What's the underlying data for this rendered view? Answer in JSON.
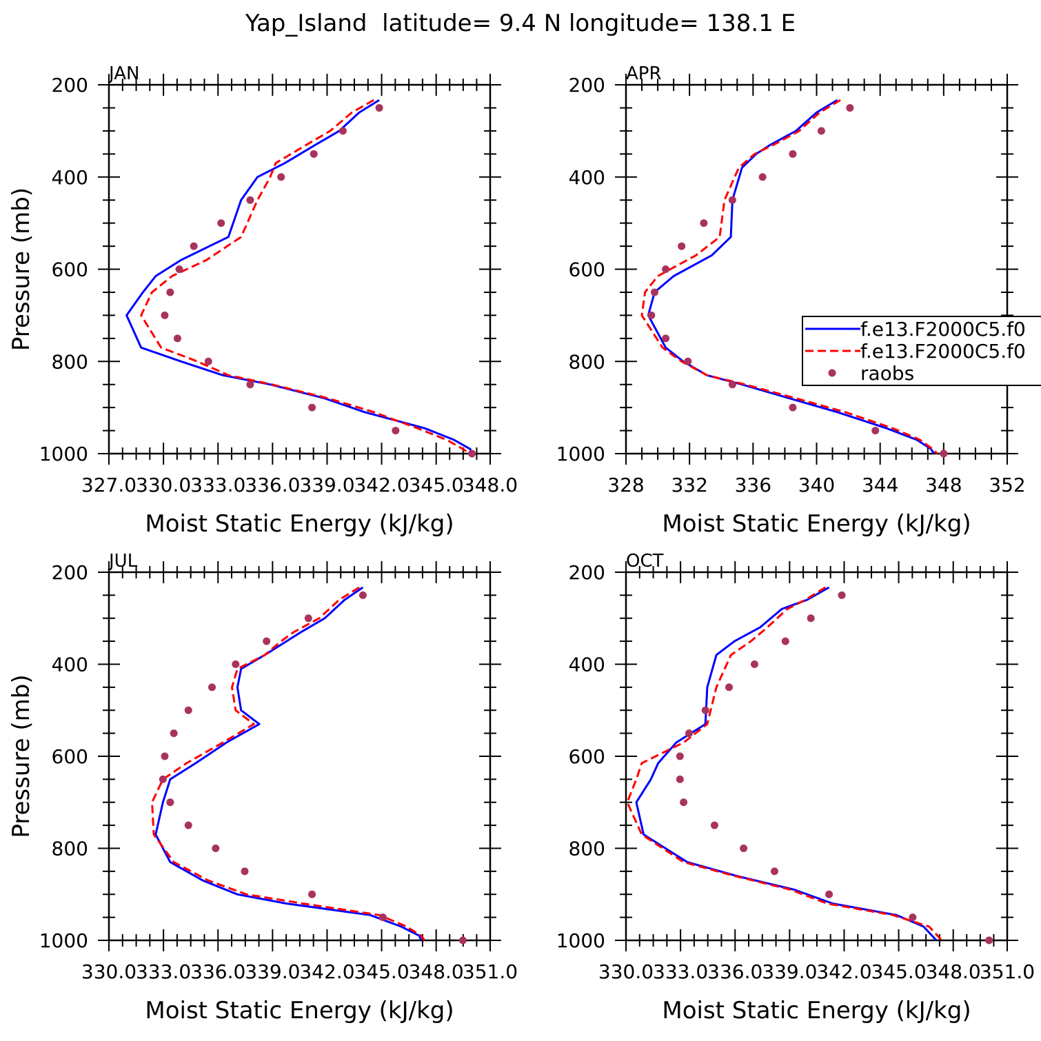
{
  "figure": {
    "title": "Yap_Island  latitude= 9.4 N longitude= 138.1 E",
    "legend": {
      "placement": "right, inside APR panel",
      "entries": [
        {
          "label": "f.e13.F2000C5.f0",
          "style": "solid",
          "color": "#0000ff"
        },
        {
          "label": "f.e13.F2000C5.f0",
          "style": "dashed",
          "color": "#ff0000"
        },
        {
          "label": "raobs",
          "style": "dots",
          "color": "#a9335f"
        }
      ]
    }
  },
  "chart_data": [
    {
      "type": "line",
      "panel_label": "JAN",
      "xlabel": "Moist Static Energy (kJ/kg)",
      "ylabel": "Pressure (mb)",
      "xlim": [
        327.03,
        348.0
      ],
      "ylim": [
        200,
        1000
      ],
      "y_inverted": true,
      "xticks": [
        327.03,
        330.03,
        333.03,
        336.03,
        339.03,
        342.03,
        345.03,
        348.0
      ],
      "xtick_labels": [
        "327.0",
        "330.0",
        "333.0",
        "336.0",
        "339.0",
        "342.0",
        "345.0",
        "348.0"
      ],
      "yticks": [
        200,
        400,
        600,
        800,
        1000
      ],
      "ytick_labels": [
        "200",
        "400",
        "600",
        "800",
        "1000"
      ],
      "series": [
        {
          "name": "f.e13.F2000C5.f0",
          "color": "#0000ff",
          "style": "solid",
          "x": [
            341.9,
            340.8,
            339.7,
            338.4,
            336.7,
            335.2,
            334.3,
            333.6,
            331.0,
            329.6,
            328.9,
            328.0,
            328.8,
            331.0,
            333.3,
            335.9,
            338.9,
            341.1,
            344.4,
            346.0,
            346.9,
            347.0
          ],
          "y": [
            233,
            260,
            300,
            330,
            370,
            400,
            450,
            530,
            580,
            615,
            650,
            700,
            770,
            800,
            830,
            850,
            880,
            910,
            945,
            970,
            990,
            1000
          ]
        },
        {
          "name": "f.e13.F2000C5.f0",
          "color": "#ff0000",
          "style": "dashed",
          "x": [
            341.6,
            340.4,
            339.2,
            337.9,
            336.2,
            335.9,
            335.2,
            334.3,
            332.4,
            330.5,
            329.4,
            328.8,
            329.9,
            331.9,
            333.6,
            336.0,
            339.1,
            341.6,
            344.0,
            345.6,
            346.5,
            346.9
          ],
          "y": [
            233,
            260,
            300,
            330,
            370,
            400,
            450,
            530,
            580,
            615,
            650,
            700,
            770,
            800,
            830,
            850,
            880,
            910,
            945,
            970,
            990,
            1000
          ]
        },
        {
          "name": "raobs",
          "color": "#a9335f",
          "style": "dots",
          "x": [
            341.9,
            339.9,
            338.3,
            336.5,
            334.8,
            333.2,
            331.7,
            330.9,
            330.4,
            330.1,
            330.8,
            332.5,
            334.8,
            338.2,
            342.8,
            347.0
          ],
          "y": [
            250,
            300,
            350,
            400,
            450,
            500,
            550,
            600,
            650,
            700,
            750,
            800,
            850,
            900,
            950,
            1000
          ]
        }
      ]
    },
    {
      "type": "line",
      "panel_label": "APR",
      "xlabel": "Moist Static Energy (kJ/kg)",
      "ylabel": "",
      "xlim": [
        328,
        352
      ],
      "ylim": [
        200,
        1000
      ],
      "y_inverted": true,
      "xticks": [
        328,
        332,
        336,
        340,
        344,
        348,
        352
      ],
      "xtick_labels": [
        "328",
        "332",
        "336",
        "340",
        "344",
        "348",
        "352"
      ],
      "yticks": [
        200,
        400,
        600,
        800,
        1000
      ],
      "ytick_labels": [
        "200",
        "400",
        "600",
        "800",
        "1000"
      ],
      "series": [
        {
          "name": "f.e13.F2000C5.f0",
          "color": "#0000ff",
          "style": "solid",
          "x": [
            341.3,
            340.0,
            338.7,
            337.1,
            336.2,
            335.3,
            334.7,
            334.6,
            333.4,
            331.0,
            329.8,
            329.4,
            330.5,
            331.6,
            333.1,
            335.3,
            338.3,
            341.3,
            344.4,
            346.3,
            347.2,
            347.4
          ],
          "y": [
            233,
            260,
            300,
            330,
            350,
            380,
            450,
            530,
            570,
            615,
            650,
            700,
            770,
            800,
            830,
            850,
            880,
            910,
            945,
            970,
            990,
            1000
          ]
        },
        {
          "name": "f.e13.F2000C5.f0",
          "color": "#ff0000",
          "style": "dashed",
          "x": [
            341.5,
            340.2,
            338.9,
            337.3,
            336.1,
            335.1,
            334.2,
            333.9,
            332.4,
            330.0,
            329.2,
            329.0,
            330.3,
            331.5,
            333.1,
            335.5,
            338.7,
            341.8,
            344.8,
            346.5,
            347.3,
            347.6
          ],
          "y": [
            233,
            260,
            300,
            330,
            350,
            380,
            450,
            530,
            570,
            615,
            650,
            700,
            770,
            800,
            830,
            850,
            880,
            910,
            945,
            970,
            990,
            1000
          ]
        },
        {
          "name": "raobs",
          "color": "#a9335f",
          "style": "dots",
          "x": [
            342.1,
            340.3,
            338.5,
            336.6,
            334.7,
            332.9,
            331.5,
            330.5,
            329.8,
            329.6,
            330.5,
            331.9,
            334.7,
            338.5,
            343.7,
            348.0
          ],
          "y": [
            250,
            300,
            350,
            400,
            450,
            500,
            550,
            600,
            650,
            700,
            750,
            800,
            850,
            900,
            950,
            1000
          ]
        }
      ]
    },
    {
      "type": "line",
      "panel_label": "JUL",
      "xlabel": "Moist Static Energy (kJ/kg)",
      "ylabel": "Pressure (mb)",
      "xlim": [
        330.03,
        351.0
      ],
      "ylim": [
        200,
        1000
      ],
      "y_inverted": true,
      "xticks": [
        330.03,
        333.03,
        336.03,
        339.03,
        342.03,
        345.03,
        348.03,
        351.0
      ],
      "xtick_labels": [
        "330.0",
        "333.0",
        "336.0",
        "339.0",
        "342.0",
        "345.0",
        "348.0",
        "351.0"
      ],
      "yticks": [
        200,
        400,
        600,
        800,
        1000
      ],
      "ytick_labels": [
        "200",
        "400",
        "600",
        "800",
        "1000"
      ],
      "series": [
        {
          "name": "f.e13.F2000C5.f0",
          "color": "#0000ff",
          "style": "solid",
          "x": [
            344.0,
            343.0,
            341.9,
            340.6,
            339.8,
            338.6,
            337.3,
            337.1,
            337.3,
            338.3,
            336.5,
            334.8,
            333.4,
            333.0,
            332.6,
            333.4,
            335.2,
            337.1,
            339.8,
            344.4,
            346.1,
            347.1,
            347.2
          ],
          "y": [
            233,
            260,
            300,
            330,
            350,
            380,
            410,
            450,
            500,
            530,
            570,
            615,
            650,
            700,
            770,
            830,
            870,
            900,
            920,
            945,
            970,
            990,
            1000
          ]
        },
        {
          "name": "f.e13.F2000C5.f0",
          "color": "#ff0000",
          "style": "dashed",
          "x": [
            343.8,
            342.7,
            341.6,
            340.2,
            339.5,
            338.6,
            337.1,
            336.8,
            337.0,
            338.0,
            336.3,
            334.3,
            333.0,
            332.4,
            332.5,
            333.6,
            335.5,
            337.6,
            340.7,
            344.9,
            346.4,
            347.2,
            347.4
          ],
          "y": [
            233,
            260,
            300,
            330,
            350,
            380,
            410,
            450,
            500,
            530,
            570,
            615,
            650,
            700,
            770,
            830,
            870,
            900,
            920,
            945,
            970,
            990,
            1000
          ]
        },
        {
          "name": "raobs",
          "color": "#a9335f",
          "style": "dots",
          "x": [
            344.0,
            341.0,
            338.7,
            337.0,
            335.7,
            334.4,
            333.6,
            333.1,
            333.0,
            333.4,
            334.4,
            335.9,
            337.5,
            341.2,
            345.1,
            349.5
          ],
          "y": [
            250,
            300,
            350,
            400,
            450,
            500,
            550,
            600,
            650,
            700,
            750,
            800,
            850,
            900,
            950,
            1000
          ]
        }
      ]
    },
    {
      "type": "line",
      "panel_label": "OCT",
      "xlabel": "Moist Static Energy (kJ/kg)",
      "ylabel": "",
      "xlim": [
        330.03,
        351.0
      ],
      "ylim": [
        200,
        1000
      ],
      "y_inverted": true,
      "xticks": [
        330.03,
        333.03,
        336.03,
        339.03,
        342.03,
        345.03,
        348.03,
        351.0
      ],
      "xtick_labels": [
        "330.0",
        "333.0",
        "336.0",
        "339.0",
        "342.0",
        "345.0",
        "348.0",
        "351.0"
      ],
      "yticks": [
        200,
        400,
        600,
        800,
        1000
      ],
      "ytick_labels": [
        "200",
        "400",
        "600",
        "800",
        "1000"
      ],
      "series": [
        {
          "name": "f.e13.F2000C5.f0",
          "color": "#0000ff",
          "style": "solid",
          "x": [
            341.2,
            340.0,
            338.6,
            337.4,
            336.0,
            335.0,
            334.5,
            334.4,
            332.8,
            331.8,
            331.4,
            330.6,
            331.0,
            333.4,
            336.1,
            339.3,
            341.4,
            344.9,
            346.4,
            347.1
          ],
          "y": [
            233,
            260,
            280,
            320,
            350,
            380,
            450,
            530,
            570,
            615,
            650,
            700,
            770,
            830,
            860,
            890,
            920,
            945,
            970,
            1000
          ]
        },
        {
          "name": "f.e13.F2000C5.f0",
          "color": "#ff0000",
          "style": "dashed",
          "x": [
            341.0,
            339.9,
            338.9,
            337.8,
            336.9,
            335.8,
            335.0,
            334.5,
            333.2,
            330.9,
            330.6,
            330.1,
            330.9,
            333.2,
            336.0,
            339.1,
            341.1,
            344.7,
            346.7,
            347.4
          ],
          "y": [
            233,
            260,
            280,
            320,
            350,
            380,
            450,
            530,
            570,
            615,
            650,
            700,
            770,
            830,
            860,
            890,
            920,
            945,
            970,
            1000
          ]
        },
        {
          "name": "raobs",
          "color": "#a9335f",
          "style": "dots",
          "x": [
            341.9,
            340.2,
            338.8,
            337.1,
            335.7,
            334.4,
            333.5,
            333.0,
            333.0,
            333.2,
            334.9,
            336.5,
            338.2,
            341.2,
            345.8,
            350.0
          ],
          "y": [
            250,
            300,
            350,
            400,
            450,
            500,
            550,
            600,
            650,
            700,
            750,
            800,
            850,
            900,
            950,
            1000
          ]
        }
      ]
    }
  ]
}
